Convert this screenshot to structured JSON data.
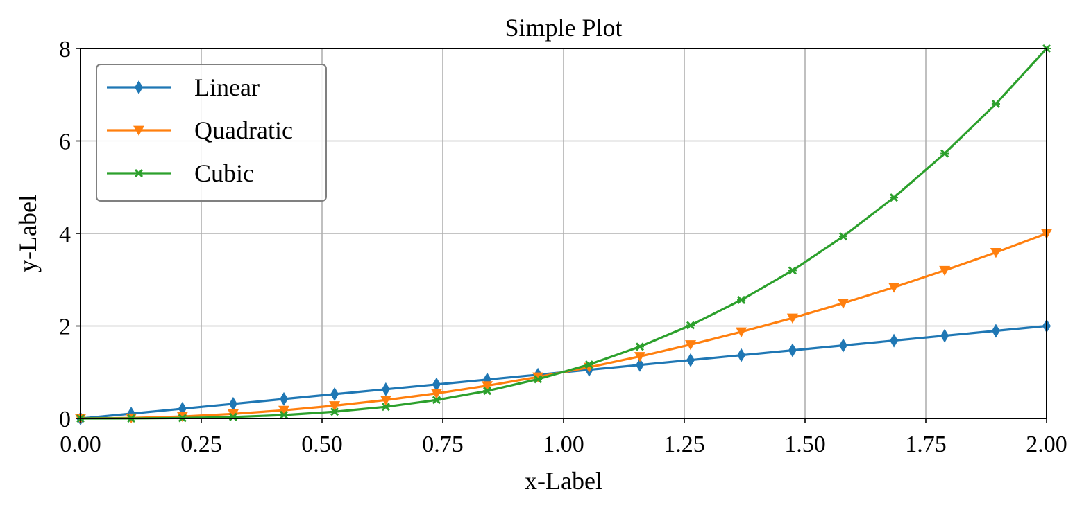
{
  "chart_data": {
    "type": "line",
    "title": "Simple Plot",
    "xlabel": "x-Label",
    "ylabel": "y-Label",
    "xlim": [
      0,
      2
    ],
    "ylim": [
      0,
      8
    ],
    "xticks": [
      0,
      0.25,
      0.5,
      0.75,
      1.0,
      1.25,
      1.5,
      1.75,
      2.0
    ],
    "xtick_labels": [
      "0.00",
      "0.25",
      "0.50",
      "0.75",
      "1.00",
      "1.25",
      "1.50",
      "1.75",
      "2.00"
    ],
    "yticks": [
      0,
      2,
      4,
      6,
      8
    ],
    "ytick_labels": [
      "0",
      "2",
      "4",
      "6",
      "8"
    ],
    "grid": true,
    "legend_position": "top-left",
    "x": [
      0.0,
      0.105,
      0.211,
      0.316,
      0.421,
      0.526,
      0.632,
      0.737,
      0.842,
      0.947,
      1.053,
      1.158,
      1.263,
      1.368,
      1.474,
      1.579,
      1.684,
      1.789,
      1.895,
      2.0
    ],
    "series": [
      {
        "name": "Linear",
        "color": "#1f77b4",
        "marker": "thin-diamond",
        "values": [
          0.0,
          0.105,
          0.211,
          0.316,
          0.421,
          0.526,
          0.632,
          0.737,
          0.842,
          0.947,
          1.053,
          1.158,
          1.263,
          1.368,
          1.474,
          1.579,
          1.684,
          1.789,
          1.895,
          2.0
        ]
      },
      {
        "name": "Quadratic",
        "color": "#ff7f0e",
        "marker": "triangle-down",
        "values": [
          0.0,
          0.011,
          0.044,
          0.1,
          0.177,
          0.277,
          0.399,
          0.543,
          0.709,
          0.898,
          1.108,
          1.341,
          1.596,
          1.873,
          2.172,
          2.493,
          2.837,
          3.202,
          3.59,
          4.0
        ]
      },
      {
        "name": "Cubic",
        "color": "#2ca02c",
        "marker": "x-star",
        "values": [
          0.0,
          0.001,
          0.009,
          0.032,
          0.075,
          0.146,
          0.252,
          0.4,
          0.597,
          0.85,
          1.166,
          1.552,
          2.015,
          2.562,
          3.2,
          3.936,
          4.777,
          5.73,
          6.802,
          8.0
        ]
      }
    ]
  }
}
